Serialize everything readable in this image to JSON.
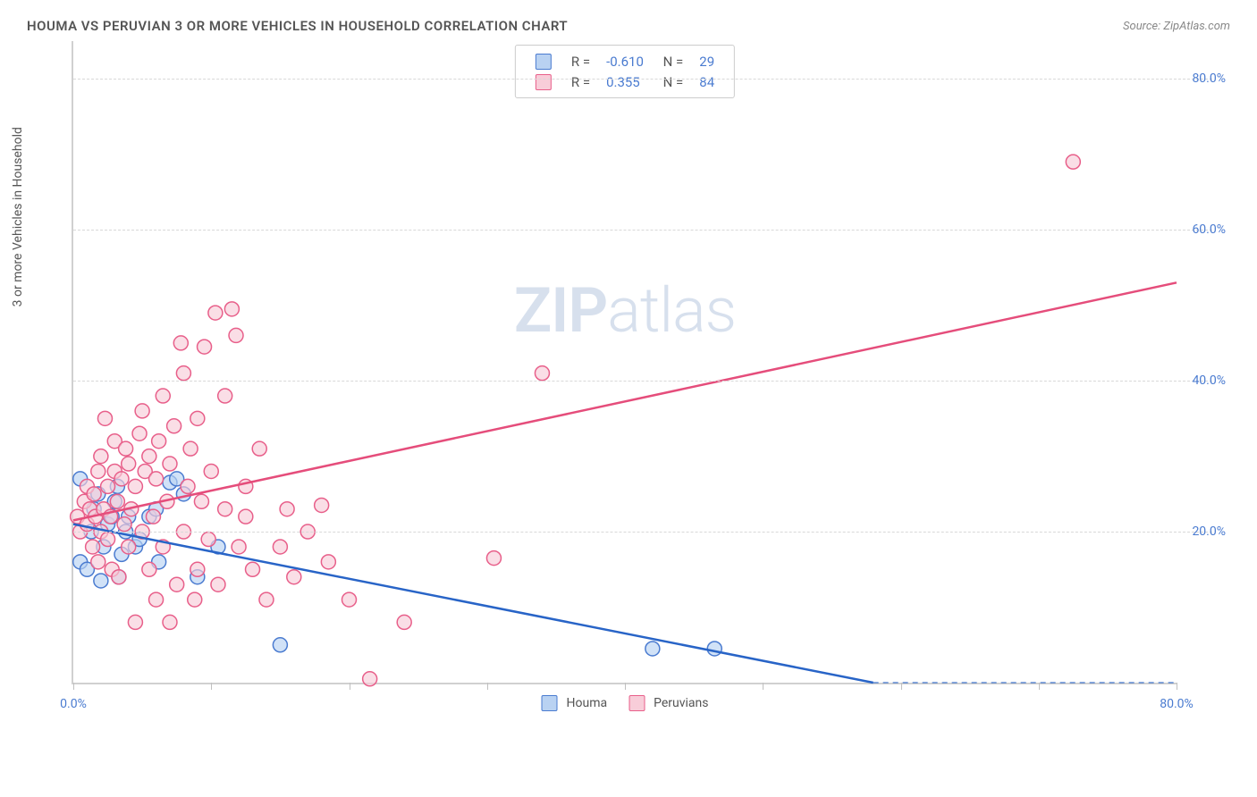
{
  "title": "HOUMA VS PERUVIAN 3 OR MORE VEHICLES IN HOUSEHOLD CORRELATION CHART",
  "source_label": "Source: ZipAtlas.com",
  "y_axis_label": "3 or more Vehicles in Household",
  "watermark": {
    "zip": "ZIP",
    "atlas": "atlas"
  },
  "chart": {
    "type": "scatter_with_regression",
    "background_color": "#ffffff",
    "border_color": "#d0d0d0",
    "grid_color": "#d8d8d8",
    "axis_label_color": "#555555",
    "tick_label_color": "#4a7bd0",
    "xlim": [
      0,
      80
    ],
    "ylim": [
      0,
      85
    ],
    "y_ticks": [
      20,
      40,
      60,
      80
    ],
    "y_tick_labels": [
      "20.0%",
      "40.0%",
      "60.0%",
      "80.0%"
    ],
    "x_ticks": [
      0,
      10,
      20,
      30,
      40,
      50,
      60,
      70,
      80
    ],
    "x_tick_labels_shown": {
      "0": "0.0%",
      "80": "80.0%"
    },
    "marker_radius": 8,
    "marker_stroke_width": 1.5,
    "line_width": 2.5,
    "series": [
      {
        "name": "Houma",
        "R": "-0.610",
        "N": "29",
        "fill": "#b9d2f2",
        "stroke": "#4a7bd0",
        "line_color": "#2864c7",
        "dash_extend": true,
        "regression": {
          "x1": 0,
          "y1": 21,
          "x2": 58,
          "y2": 0,
          "dash_x2": 80
        },
        "points": [
          [
            0.5,
            16
          ],
          [
            0.5,
            27
          ],
          [
            1.0,
            15
          ],
          [
            1.3,
            20
          ],
          [
            1.5,
            23
          ],
          [
            1.8,
            25
          ],
          [
            2.0,
            13.5
          ],
          [
            2.2,
            18
          ],
          [
            2.5,
            21
          ],
          [
            2.8,
            22
          ],
          [
            3.0,
            24
          ],
          [
            3.2,
            26
          ],
          [
            3.3,
            14
          ],
          [
            3.5,
            17
          ],
          [
            3.8,
            20
          ],
          [
            4.0,
            22
          ],
          [
            4.5,
            18
          ],
          [
            4.8,
            19
          ],
          [
            5.5,
            22
          ],
          [
            6.0,
            23
          ],
          [
            6.2,
            16
          ],
          [
            7.0,
            26.5
          ],
          [
            7.5,
            27
          ],
          [
            8.0,
            25
          ],
          [
            9.0,
            14
          ],
          [
            10.5,
            18
          ],
          [
            15.0,
            5
          ],
          [
            42.0,
            4.5
          ],
          [
            46.5,
            4.5
          ]
        ]
      },
      {
        "name": "Peruvians",
        "R": "0.355",
        "N": "84",
        "fill": "#f8cdd9",
        "stroke": "#e85f8a",
        "line_color": "#e54d7b",
        "dash_extend": false,
        "regression": {
          "x1": 0,
          "y1": 21.5,
          "x2": 80,
          "y2": 53
        },
        "points": [
          [
            0.3,
            22
          ],
          [
            0.5,
            20
          ],
          [
            0.8,
            24
          ],
          [
            1.0,
            21
          ],
          [
            1.0,
            26
          ],
          [
            1.2,
            23
          ],
          [
            1.4,
            18
          ],
          [
            1.5,
            25
          ],
          [
            1.6,
            22
          ],
          [
            1.8,
            16
          ],
          [
            1.8,
            28
          ],
          [
            2.0,
            20
          ],
          [
            2.0,
            30
          ],
          [
            2.2,
            23
          ],
          [
            2.3,
            35
          ],
          [
            2.5,
            19
          ],
          [
            2.5,
            26
          ],
          [
            2.7,
            22
          ],
          [
            2.8,
            15
          ],
          [
            3.0,
            28
          ],
          [
            3.0,
            32
          ],
          [
            3.2,
            24
          ],
          [
            3.3,
            14
          ],
          [
            3.5,
            27
          ],
          [
            3.7,
            21
          ],
          [
            3.8,
            31
          ],
          [
            4.0,
            18
          ],
          [
            4.0,
            29
          ],
          [
            4.2,
            23
          ],
          [
            4.5,
            8
          ],
          [
            4.5,
            26
          ],
          [
            4.8,
            33
          ],
          [
            5.0,
            20
          ],
          [
            5.0,
            36
          ],
          [
            5.2,
            28
          ],
          [
            5.5,
            15
          ],
          [
            5.5,
            30
          ],
          [
            5.8,
            22
          ],
          [
            6.0,
            11
          ],
          [
            6.0,
            27
          ],
          [
            6.2,
            32
          ],
          [
            6.5,
            38
          ],
          [
            6.5,
            18
          ],
          [
            6.8,
            24
          ],
          [
            7.0,
            8
          ],
          [
            7.0,
            29
          ],
          [
            7.3,
            34
          ],
          [
            7.5,
            13
          ],
          [
            7.8,
            45
          ],
          [
            8.0,
            41
          ],
          [
            8.0,
            20
          ],
          [
            8.3,
            26
          ],
          [
            8.5,
            31
          ],
          [
            8.8,
            11
          ],
          [
            9.0,
            15
          ],
          [
            9.0,
            35
          ],
          [
            9.3,
            24
          ],
          [
            9.5,
            44.5
          ],
          [
            9.8,
            19
          ],
          [
            10.0,
            28
          ],
          [
            10.3,
            49
          ],
          [
            10.5,
            13
          ],
          [
            11.0,
            38
          ],
          [
            11.0,
            23
          ],
          [
            11.5,
            49.5
          ],
          [
            11.8,
            46
          ],
          [
            12.0,
            18
          ],
          [
            12.5,
            26
          ],
          [
            12.5,
            22
          ],
          [
            13.0,
            15
          ],
          [
            13.5,
            31
          ],
          [
            14.0,
            11
          ],
          [
            15.0,
            18
          ],
          [
            15.5,
            23
          ],
          [
            16.0,
            14
          ],
          [
            17.0,
            20
          ],
          [
            18.0,
            23.5
          ],
          [
            18.5,
            16
          ],
          [
            20.0,
            11
          ],
          [
            21.5,
            0.5
          ],
          [
            24.0,
            8
          ],
          [
            30.5,
            16.5
          ],
          [
            34.0,
            41
          ],
          [
            72.5,
            69
          ]
        ]
      }
    ],
    "legend_labels": [
      "Houma",
      "Peruvians"
    ]
  }
}
